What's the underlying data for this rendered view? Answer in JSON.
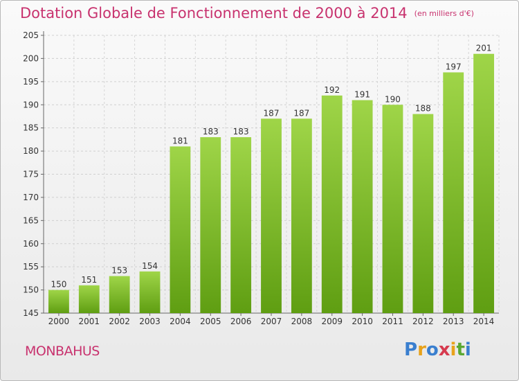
{
  "title": "Dotation Globale de Fonctionnement de 2000 à 2014",
  "title_unit": "(en milliers d'€)",
  "commune": "MONBAHUS",
  "logo": {
    "letters": [
      "P",
      "r",
      "o",
      "x",
      "i",
      "t",
      "i"
    ],
    "colors": [
      "#3a7fcf",
      "#e8a21b",
      "#3a7fcf",
      "#d63a4e",
      "#e8a21b",
      "#5aa832",
      "#3a7fcf"
    ]
  },
  "colors": {
    "bar_light": "#9fd548",
    "bar_dark": "#5f9e12",
    "title": "#c8326e"
  },
  "chart_data": {
    "type": "bar",
    "categories": [
      "2000",
      "2001",
      "2002",
      "2003",
      "2004",
      "2005",
      "2006",
      "2007",
      "2008",
      "2009",
      "2010",
      "2011",
      "2012",
      "2013",
      "2014"
    ],
    "values": [
      150,
      151,
      153,
      154,
      181,
      183,
      183,
      187,
      187,
      192,
      191,
      190,
      188,
      197,
      201
    ],
    "ylim": [
      145,
      205
    ],
    "yticks": [
      145,
      150,
      155,
      160,
      165,
      170,
      175,
      180,
      185,
      190,
      195,
      200,
      205
    ],
    "grid": true,
    "title": "Dotation Globale de Fonctionnement de 2000 à 2014",
    "xlabel": "",
    "ylabel": ""
  }
}
